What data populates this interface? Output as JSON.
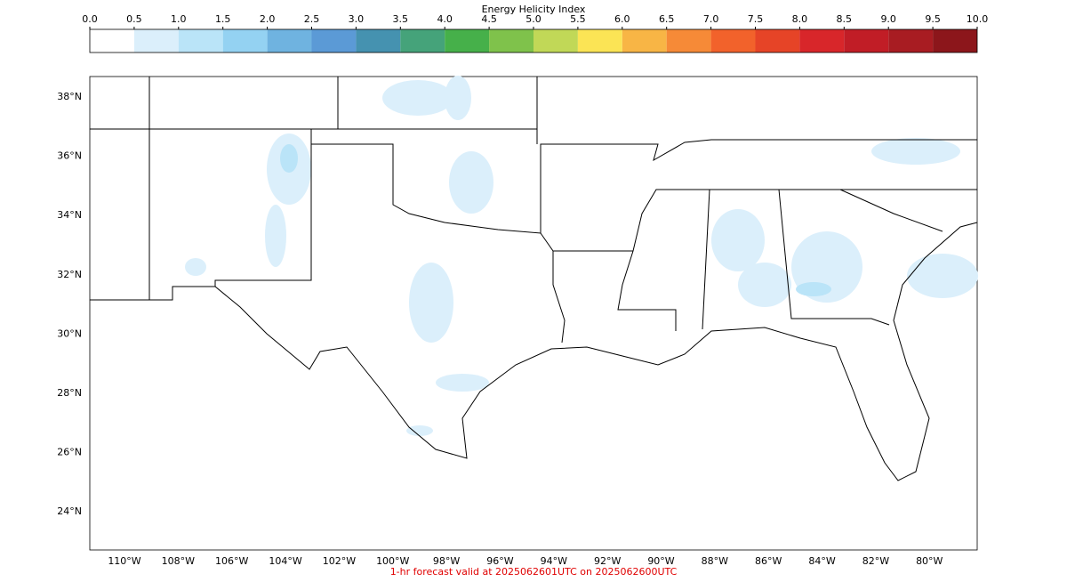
{
  "colorbar": {
    "title": "Energy Helicity Index",
    "ticks": [
      {
        "value": 0,
        "label": "0.0"
      },
      {
        "value": 0.5,
        "label": "0.5"
      },
      {
        "value": 1,
        "label": "1.0"
      },
      {
        "value": 1.5,
        "label": "1.5"
      },
      {
        "value": 2,
        "label": "2.0"
      },
      {
        "value": 2.5,
        "label": "2.5"
      },
      {
        "value": 3,
        "label": "3.0"
      },
      {
        "value": 3.5,
        "label": "3.5"
      },
      {
        "value": 4,
        "label": "4.0"
      },
      {
        "value": 4.5,
        "label": "4.5"
      },
      {
        "value": 5,
        "label": "5.0"
      },
      {
        "value": 5.5,
        "label": "5.5"
      },
      {
        "value": 6,
        "label": "6.0"
      },
      {
        "value": 6.5,
        "label": "6.5"
      },
      {
        "value": 7,
        "label": "7.0"
      },
      {
        "value": 7.5,
        "label": "7.5"
      },
      {
        "value": 8,
        "label": "8.0"
      },
      {
        "value": 8.5,
        "label": "8.5"
      },
      {
        "value": 9,
        "label": "9.0"
      },
      {
        "value": 9.5,
        "label": "9.5"
      },
      {
        "value": 10,
        "label": "10.0"
      }
    ],
    "colors": [
      "#ffffff",
      "#dbeffb",
      "#bae4f8",
      "#94d2f2",
      "#6fb3e0",
      "#5b9ad6",
      "#4592b0",
      "#45a37a",
      "#46b04a",
      "#7fc24b",
      "#c1d857",
      "#fbe455",
      "#f8b545",
      "#f68a37",
      "#f2622b",
      "#e64427",
      "#d8262a",
      "#c11d26",
      "#a81c22",
      "#8c161b"
    ]
  },
  "map": {
    "lat_labels": [
      "38°N",
      "36°N",
      "34°N",
      "32°N",
      "30°N",
      "28°N",
      "26°N",
      "24°N"
    ],
    "lon_labels": [
      "110°W",
      "108°W",
      "106°W",
      "104°W",
      "102°W",
      "100°W",
      "98°W",
      "96°W",
      "94°W",
      "92°W",
      "90°W",
      "88°W",
      "86°W",
      "84°W",
      "82°W",
      "80°W"
    ]
  },
  "footer": "1-hr forecast valid at 2025062601UTC on 2025062600UTC"
}
